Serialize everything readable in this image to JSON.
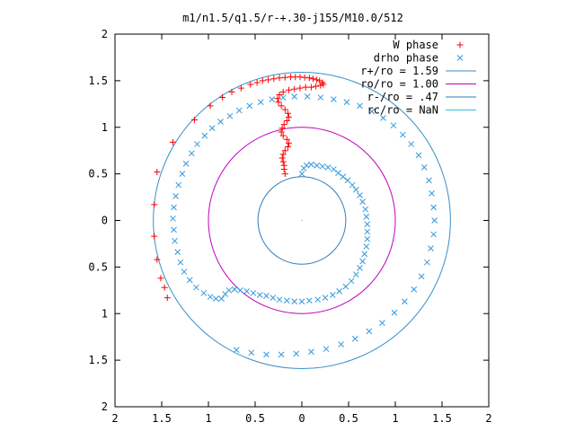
{
  "chart_data": {
    "type": "scatter",
    "title": "m1/n1.5/q1.5/r-+.30-j155/M10.0/512",
    "xlim": [
      -2,
      2
    ],
    "ylim": [
      -2,
      2
    ],
    "xticks": [
      -2,
      -1.5,
      -1,
      -0.5,
      0,
      0.5,
      1,
      1.5,
      2
    ],
    "xtick_labels": [
      "2",
      "1.5",
      "1",
      "0.5",
      "0",
      "0.5",
      "1",
      "1.5",
      "2"
    ],
    "yticks": [
      2,
      1.5,
      1,
      0.5,
      0,
      -0.5,
      -1,
      -1.5,
      -2
    ],
    "ytick_labels": [
      "2",
      "1.5",
      "1",
      "0.5",
      "0",
      "0.5",
      "1",
      "1.5",
      "2"
    ],
    "legend_position": "top-right",
    "grid": false,
    "series": [
      {
        "name": "W phase",
        "marker": "plus",
        "color": "#ff0000",
        "points": [
          [
            -1.58,
            -0.17
          ],
          [
            -1.58,
            0.17
          ],
          [
            -1.55,
            -0.42
          ],
          [
            -1.55,
            0.52
          ],
          [
            -1.51,
            -0.62
          ],
          [
            -1.47,
            -0.72
          ],
          [
            -1.44,
            -0.83
          ],
          [
            -1.38,
            0.84
          ],
          [
            -1.15,
            1.08
          ],
          [
            -0.98,
            1.23
          ],
          [
            -0.85,
            1.32
          ],
          [
            -0.75,
            1.38
          ],
          [
            -0.65,
            1.42
          ],
          [
            -0.55,
            1.46
          ],
          [
            -0.48,
            1.48
          ],
          [
            -0.42,
            1.5
          ],
          [
            -0.36,
            1.51
          ],
          [
            -0.3,
            1.52
          ],
          [
            -0.24,
            1.53
          ],
          [
            -0.18,
            1.535
          ],
          [
            -0.12,
            1.54
          ],
          [
            -0.07,
            1.54
          ],
          [
            -0.02,
            1.54
          ],
          [
            0.03,
            1.535
          ],
          [
            0.08,
            1.53
          ],
          [
            0.12,
            1.52
          ],
          [
            0.16,
            1.51
          ],
          [
            0.19,
            1.5
          ],
          [
            0.22,
            1.48
          ],
          [
            0.23,
            1.46
          ],
          [
            0.2,
            1.45
          ],
          [
            0.15,
            1.44
          ],
          [
            0.1,
            1.43
          ],
          [
            0.04,
            1.43
          ],
          [
            -0.02,
            1.42
          ],
          [
            -0.08,
            1.41
          ],
          [
            -0.14,
            1.4
          ],
          [
            -0.2,
            1.38
          ],
          [
            -0.24,
            1.35
          ],
          [
            -0.26,
            1.31
          ],
          [
            -0.25,
            1.27
          ],
          [
            -0.22,
            1.23
          ],
          [
            -0.18,
            1.19
          ],
          [
            -0.15,
            1.15
          ],
          [
            -0.14,
            1.11
          ],
          [
            -0.16,
            1.07
          ],
          [
            -0.19,
            1.03
          ],
          [
            -0.21,
            0.99
          ],
          [
            -0.22,
            0.95
          ],
          [
            -0.2,
            0.91
          ],
          [
            -0.16,
            0.87
          ],
          [
            -0.14,
            0.83
          ],
          [
            -0.15,
            0.79
          ],
          [
            -0.18,
            0.75
          ],
          [
            -0.2,
            0.71
          ],
          [
            -0.21,
            0.67
          ],
          [
            -0.2,
            0.63
          ],
          [
            -0.19,
            0.59
          ],
          [
            -0.19,
            0.55
          ],
          [
            -0.18,
            0.5
          ]
        ]
      },
      {
        "name": "drho phase",
        "marker": "cross",
        "color": "#3399dd",
        "points": [
          [
            0.0,
            0.5
          ],
          [
            0.02,
            0.56
          ],
          [
            0.05,
            0.59
          ],
          [
            0.1,
            0.6
          ],
          [
            0.16,
            0.59
          ],
          [
            0.22,
            0.58
          ],
          [
            0.28,
            0.57
          ],
          [
            0.34,
            0.55
          ],
          [
            0.39,
            0.51
          ],
          [
            0.44,
            0.47
          ],
          [
            0.49,
            0.43
          ],
          [
            0.54,
            0.38
          ],
          [
            0.58,
            0.33
          ],
          [
            0.62,
            0.27
          ],
          [
            0.65,
            0.2
          ],
          [
            0.68,
            0.12
          ],
          [
            0.69,
            0.04
          ],
          [
            0.7,
            -0.04
          ],
          [
            0.7,
            -0.12
          ],
          [
            0.7,
            -0.2
          ],
          [
            0.69,
            -0.28
          ],
          [
            0.67,
            -0.36
          ],
          [
            0.65,
            -0.44
          ],
          [
            0.62,
            -0.51
          ],
          [
            0.58,
            -0.58
          ],
          [
            0.53,
            -0.65
          ],
          [
            0.47,
            -0.71
          ],
          [
            0.4,
            -0.76
          ],
          [
            0.33,
            -0.8
          ],
          [
            0.25,
            -0.83
          ],
          [
            0.17,
            -0.85
          ],
          [
            0.08,
            -0.86
          ],
          [
            0.0,
            -0.87
          ],
          [
            -0.08,
            -0.87
          ],
          [
            -0.16,
            -0.86
          ],
          [
            -0.24,
            -0.85
          ],
          [
            -0.31,
            -0.83
          ],
          [
            -0.38,
            -0.81
          ],
          [
            -0.45,
            -0.8
          ],
          [
            -0.52,
            -0.78
          ],
          [
            -0.59,
            -0.76
          ],
          [
            -0.66,
            -0.75
          ],
          [
            -0.72,
            -0.74
          ],
          [
            -0.78,
            -0.75
          ],
          [
            -0.82,
            -0.79
          ],
          [
            -0.86,
            -0.84
          ],
          [
            -0.92,
            -0.84
          ],
          [
            -0.98,
            -0.82
          ],
          [
            -1.05,
            -0.78
          ],
          [
            -1.13,
            -0.72
          ],
          [
            -1.2,
            -0.64
          ],
          [
            -1.26,
            -0.55
          ],
          [
            -1.3,
            -0.45
          ],
          [
            -1.33,
            -0.34
          ],
          [
            -1.36,
            -0.22
          ],
          [
            -1.37,
            -0.1
          ],
          [
            -1.38,
            0.02
          ],
          [
            -1.37,
            0.14
          ],
          [
            -1.35,
            0.26
          ],
          [
            -1.32,
            0.38
          ],
          [
            -1.28,
            0.5
          ],
          [
            -1.24,
            0.61
          ],
          [
            -1.18,
            0.72
          ],
          [
            -1.12,
            0.82
          ],
          [
            -1.04,
            0.91
          ],
          [
            -0.96,
            0.99
          ],
          [
            -0.87,
            1.06
          ],
          [
            -0.77,
            1.12
          ],
          [
            -0.67,
            1.18
          ],
          [
            -0.56,
            1.23
          ],
          [
            -0.44,
            1.27
          ],
          [
            -0.32,
            1.3
          ],
          [
            -0.2,
            1.32
          ],
          [
            -0.08,
            1.33
          ],
          [
            0.06,
            1.33
          ],
          [
            0.2,
            1.32
          ],
          [
            0.34,
            1.3
          ],
          [
            0.48,
            1.27
          ],
          [
            0.62,
            1.23
          ],
          [
            0.75,
            1.17
          ],
          [
            0.87,
            1.1
          ],
          [
            0.98,
            1.02
          ],
          [
            1.08,
            0.92
          ],
          [
            1.17,
            0.82
          ],
          [
            1.25,
            0.7
          ],
          [
            1.31,
            0.57
          ],
          [
            1.36,
            0.43
          ],
          [
            1.39,
            0.29
          ],
          [
            1.41,
            0.14
          ],
          [
            1.42,
            0.0
          ],
          [
            1.41,
            -0.15
          ],
          [
            1.38,
            -0.3
          ],
          [
            1.34,
            -0.45
          ],
          [
            1.28,
            -0.6
          ],
          [
            1.2,
            -0.74
          ],
          [
            1.1,
            -0.87
          ],
          [
            0.99,
            -0.99
          ],
          [
            0.86,
            -1.1
          ],
          [
            0.72,
            -1.19
          ],
          [
            0.57,
            -1.27
          ],
          [
            0.42,
            -1.33
          ],
          [
            0.26,
            -1.38
          ],
          [
            0.1,
            -1.41
          ],
          [
            -0.06,
            -1.43
          ],
          [
            -0.22,
            -1.44
          ],
          [
            -0.38,
            -1.44
          ],
          [
            -0.54,
            -1.42
          ],
          [
            -0.7,
            -1.39
          ]
        ]
      }
    ],
    "circles": [
      {
        "name": "r+/ro = 1.59",
        "radius": 1.59,
        "color": "#3a8fc8"
      },
      {
        "name": "ro/ro = 1.00",
        "radius": 1.0,
        "color": "#c000c0"
      },
      {
        "name": "r-/ro = .47",
        "radius": 0.47,
        "color": "#2f7fbf"
      },
      {
        "name": "rc/ro = NaN",
        "radius": null,
        "color": "#33c0d8"
      }
    ],
    "legend": [
      {
        "label": "W phase",
        "symbol": "plus",
        "color": "#ff0000"
      },
      {
        "label": "drho phase",
        "symbol": "cross",
        "color": "#3399dd"
      },
      {
        "label": "r+/ro = 1.59",
        "symbol": "line",
        "color": "#3a8fc8"
      },
      {
        "label": "ro/ro = 1.00",
        "symbol": "line",
        "color": "#c000c0"
      },
      {
        "label": "r-/ro = .47",
        "symbol": "line",
        "color": "#2f7fbf"
      },
      {
        "label": "rc/ro = NaN",
        "symbol": "line",
        "color": "#33c0d8"
      }
    ]
  }
}
